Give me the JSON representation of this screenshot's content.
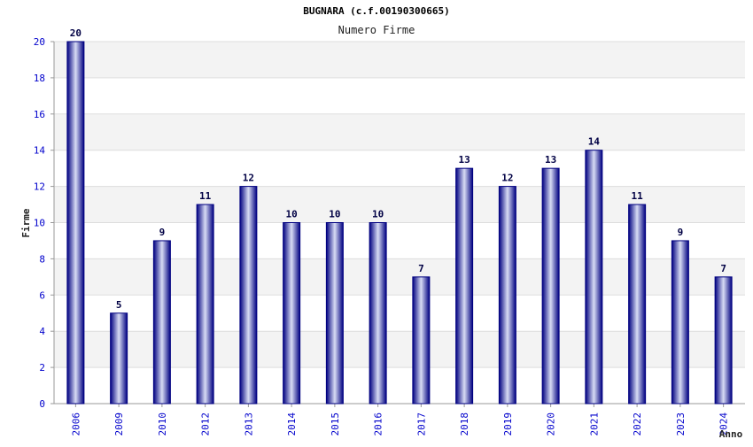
{
  "chart_data": {
    "type": "bar",
    "title": "BUGNARA (c.f.00190300665)",
    "subtitle": "Numero Firme",
    "xlabel": "Anno",
    "ylabel": "Firme",
    "ylim": [
      0,
      20
    ],
    "yticks": [
      0,
      2,
      4,
      6,
      8,
      10,
      12,
      14,
      16,
      18,
      20
    ],
    "grid": true,
    "categories": [
      "2006",
      "2009",
      "2010",
      "2012",
      "2013",
      "2014",
      "2015",
      "2016",
      "2017",
      "2018",
      "2019",
      "2020",
      "2021",
      "2022",
      "2023",
      "2024"
    ],
    "series": [
      {
        "name": "Firme",
        "values": [
          20,
          5,
          9,
          11,
          12,
          10,
          10,
          10,
          7,
          13,
          12,
          13,
          14,
          11,
          9,
          7
        ]
      }
    ],
    "colors": {
      "bar_dark": "#000080",
      "bar_light": "#d8dcf4",
      "band": "#f3f3f3",
      "gridline": "#dddddd",
      "axis": "#999999",
      "tick_text": "#0000cc"
    }
  }
}
